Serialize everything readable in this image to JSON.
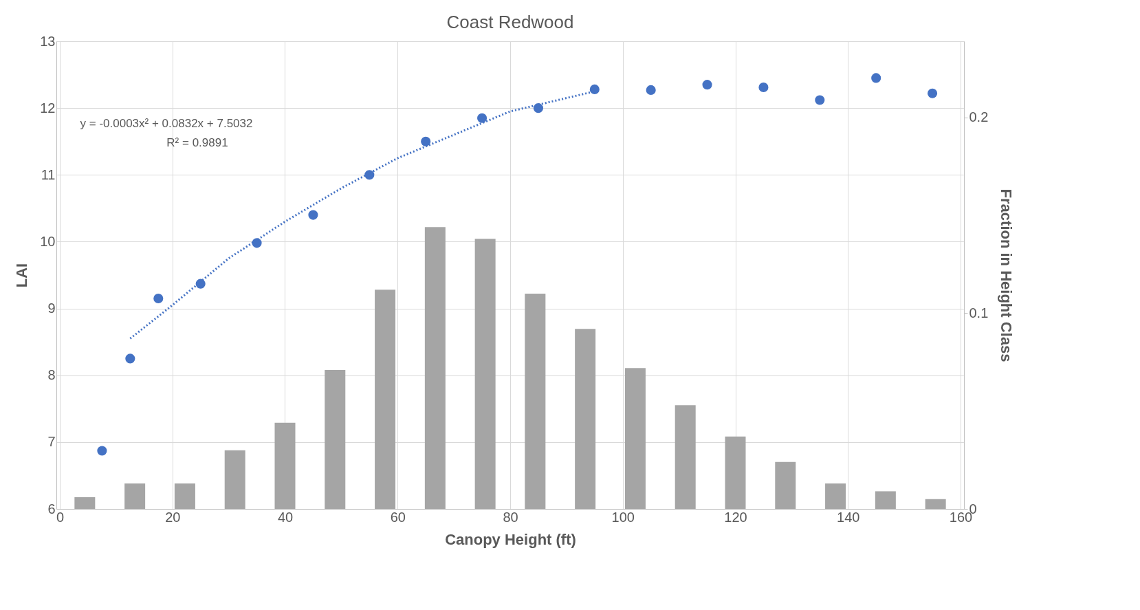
{
  "chart_data": {
    "type": "scatter",
    "title": "Coast Redwood",
    "xlabel": "Canopy Height (ft)",
    "ylabel": "LAI",
    "y2label": "Fraction in Height Class",
    "xlim": [
      0,
      160
    ],
    "xticks": [
      0,
      20,
      40,
      60,
      80,
      100,
      120,
      140,
      160
    ],
    "ylim": [
      6,
      13
    ],
    "yticks": [
      6,
      7,
      8,
      9,
      10,
      11,
      12,
      13
    ],
    "y2lim": [
      0,
      0.239
    ],
    "y2ticks": [
      0,
      0.1,
      0.2
    ],
    "grid": true,
    "annotations": [
      "y = -0.0003x² + 0.0832x + 7.5032",
      "R² = 0.9891"
    ],
    "series": [
      {
        "type": "bar",
        "axis": "y2",
        "color": "#a5a5a5",
        "x": [
          4.44,
          13.33,
          22.22,
          31.11,
          40,
          48.89,
          57.78,
          66.67,
          75.56,
          84.44,
          93.33,
          102.22,
          111.11,
          120,
          128.89,
          137.78,
          146.67,
          155.56
        ],
        "values": [
          0.006,
          0.013,
          0.013,
          0.03,
          0.044,
          0.071,
          0.112,
          0.144,
          0.138,
          0.11,
          0.092,
          0.072,
          0.053,
          0.037,
          0.024,
          0.013,
          0.009,
          0.005
        ]
      },
      {
        "marker": "circle",
        "color": "#4472c4",
        "x": [
          7.5,
          12.5,
          17.5,
          25,
          35,
          45,
          55,
          65,
          75,
          85,
          95,
          105,
          115,
          125,
          135,
          145,
          155
        ],
        "values": [
          6.87,
          8.25,
          9.15,
          9.37,
          9.98,
          10.4,
          11.0,
          11.5,
          11.85,
          12.0,
          12.28,
          12.27,
          12.35,
          12.31,
          12.12,
          12.45,
          12.22
        ]
      },
      {
        "type": "line",
        "color": "#4472c4",
        "line_style": "dotted",
        "x": [
          12.5,
          20,
          30,
          40,
          50,
          60,
          70,
          80,
          90,
          95
        ],
        "values": [
          8.55,
          9.05,
          9.75,
          10.3,
          10.8,
          11.25,
          11.6,
          11.95,
          12.15,
          12.25
        ]
      }
    ]
  }
}
